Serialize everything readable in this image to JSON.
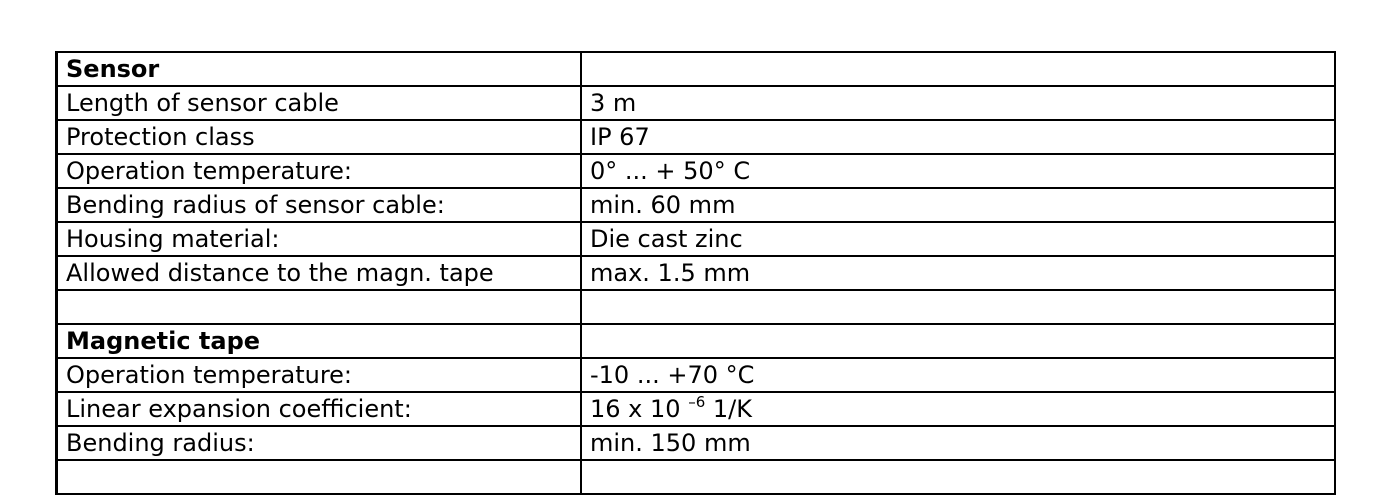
{
  "rows": [
    {
      "key": "Sensor",
      "value": "",
      "header": true
    },
    {
      "key": "Length of sensor cable",
      "value": "3 m"
    },
    {
      "key": "Protection class",
      "value": "IP 67"
    },
    {
      "key": "Operation temperature:",
      "value": "0° ... + 50° C"
    },
    {
      "key": "Bending radius of sensor cable:",
      "value": "min. 60 mm"
    },
    {
      "key": "Housing material:",
      "value": "Die cast zinc"
    },
    {
      "key": "Allowed distance to the magn. tape",
      "value": "max. 1.5 mm"
    },
    {
      "key": "",
      "value": ""
    },
    {
      "key": "Magnetic tape",
      "value": "",
      "header": true
    },
    {
      "key": "Operation temperature:",
      "value": "-10 ... +70 °C"
    },
    {
      "key": "Linear expansion coefficient:",
      "value": "16 x 10",
      "exponent": "–6",
      "suffix": "1/K"
    },
    {
      "key": "Bending radius:",
      "value": "min. 150 mm"
    },
    {
      "key": "",
      "value": ""
    }
  ]
}
